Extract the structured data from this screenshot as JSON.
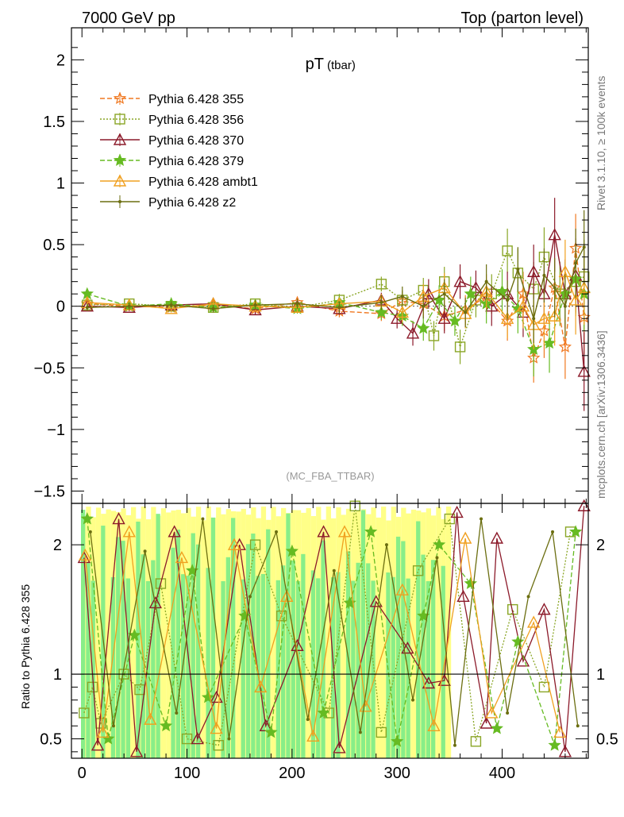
{
  "header": {
    "left": "7000 GeV pp",
    "right": "Top (parton level)"
  },
  "side_labels": {
    "rivet": "Rivet 3.1.10, ≥ 100k events",
    "mcplots": "mcplots.cern.ch [arXiv:1306.3436]"
  },
  "chart_data": [
    {
      "type": "line",
      "panel": "main",
      "title": "pT",
      "title_sub": "(tbar)",
      "analysis_tag": "(MC_FBA_TTBAR)",
      "xlabel": "",
      "ylabel": "",
      "xlim": [
        -10,
        482
      ],
      "ylim": [
        -1.6,
        2.26
      ],
      "x_ticks": [
        0,
        100,
        200,
        300,
        400
      ],
      "y_ticks": [
        -1.5,
        -1,
        -0.5,
        0,
        0.5,
        1,
        1.5,
        2
      ],
      "y_tick_labels": [
        "−1.5",
        "−1",
        "−0.5",
        "0",
        "0.5",
        "1",
        "1.5",
        "2"
      ],
      "legend_position": "top-left",
      "series": [
        {
          "name": "Pythia 6.428 355",
          "color": "#f07820",
          "dash": "6,3",
          "marker": "star",
          "marker_filled": false,
          "x": [
            5,
            45,
            85,
            125,
            165,
            205,
            245,
            285,
            305,
            325,
            345,
            365,
            385,
            405,
            420,
            430,
            440,
            450,
            460,
            470,
            478
          ],
          "y": [
            0.02,
            0.0,
            -0.01,
            0.01,
            -0.02,
            0.03,
            -0.04,
            -0.06,
            0.04,
            0.02,
            -0.08,
            -0.03,
            0.08,
            -0.12,
            0.1,
            -0.42,
            -0.2,
            0.15,
            -0.33,
            0.47,
            -0.09
          ],
          "err": [
            0.03,
            0.03,
            0.03,
            0.03,
            0.04,
            0.04,
            0.05,
            0.06,
            0.08,
            0.1,
            0.12,
            0.12,
            0.14,
            0.16,
            0.18,
            0.2,
            0.22,
            0.24,
            0.26,
            0.28,
            0.3
          ]
        },
        {
          "name": "Pythia 6.428 356",
          "color": "#8aa626",
          "dash": "2,2",
          "marker": "square",
          "marker_filled": false,
          "x": [
            5,
            45,
            85,
            125,
            165,
            205,
            245,
            285,
            305,
            325,
            335,
            345,
            360,
            375,
            390,
            405,
            415,
            430,
            440,
            455,
            470,
            478
          ],
          "y": [
            0.01,
            0.02,
            0.0,
            -0.01,
            0.02,
            -0.01,
            0.05,
            0.18,
            0.05,
            0.13,
            -0.24,
            0.2,
            -0.33,
            0.05,
            0.1,
            0.45,
            0.27,
            0.14,
            0.4,
            0.1,
            0.2,
            0.24
          ],
          "err": [
            0.03,
            0.03,
            0.03,
            0.03,
            0.04,
            0.04,
            0.05,
            0.06,
            0.08,
            0.1,
            0.12,
            0.12,
            0.14,
            0.14,
            0.16,
            0.18,
            0.2,
            0.22,
            0.24,
            0.26,
            0.28,
            0.3
          ]
        },
        {
          "name": "Pythia 6.428 370",
          "color": "#8c1a2a",
          "dash": "",
          "marker": "triangle",
          "marker_filled": false,
          "x": [
            5,
            45,
            85,
            125,
            165,
            205,
            245,
            285,
            300,
            315,
            330,
            345,
            360,
            375,
            390,
            405,
            420,
            430,
            440,
            450,
            460,
            470,
            478
          ],
          "y": [
            0.0,
            -0.01,
            0.01,
            0.02,
            -0.03,
            0.0,
            -0.02,
            0.05,
            -0.1,
            -0.22,
            0.1,
            -0.1,
            0.2,
            0.15,
            0.0,
            0.1,
            -0.05,
            0.28,
            0.1,
            0.58,
            0.1,
            0.25,
            -0.53
          ],
          "err": [
            0.03,
            0.03,
            0.03,
            0.03,
            0.04,
            0.04,
            0.05,
            0.06,
            0.08,
            0.1,
            0.12,
            0.12,
            0.14,
            0.14,
            0.16,
            0.18,
            0.2,
            0.22,
            0.24,
            0.3,
            0.28,
            0.3,
            0.32
          ]
        },
        {
          "name": "Pythia 6.428 379",
          "color": "#66bb22",
          "dash": "6,3",
          "marker": "star",
          "marker_filled": true,
          "x": [
            5,
            45,
            85,
            125,
            165,
            205,
            245,
            285,
            305,
            325,
            340,
            355,
            370,
            385,
            400,
            415,
            430,
            445,
            460,
            470,
            478
          ],
          "y": [
            0.1,
            0.0,
            0.02,
            -0.01,
            0.01,
            -0.02,
            0.03,
            -0.05,
            -0.08,
            -0.18,
            0.05,
            -0.12,
            0.1,
            0.02,
            0.12,
            -0.02,
            -0.35,
            -0.3,
            0.1,
            0.22,
            0.1
          ],
          "err": [
            0.03,
            0.03,
            0.03,
            0.03,
            0.04,
            0.04,
            0.05,
            0.06,
            0.08,
            0.1,
            0.12,
            0.12,
            0.14,
            0.16,
            0.18,
            0.2,
            0.22,
            0.24,
            0.26,
            0.28,
            0.3
          ]
        },
        {
          "name": "Pythia 6.428 ambt1",
          "color": "#f0a020",
          "dash": "",
          "marker": "triangle",
          "marker_filled": false,
          "x": [
            5,
            45,
            85,
            125,
            165,
            205,
            245,
            285,
            305,
            325,
            345,
            365,
            385,
            405,
            420,
            430,
            440,
            450,
            460,
            470,
            478
          ],
          "y": [
            0.03,
            0.01,
            -0.02,
            0.02,
            0.0,
            -0.01,
            0.02,
            0.04,
            -0.05,
            0.08,
            0.15,
            -0.06,
            0.12,
            -0.1,
            0.0,
            -0.15,
            -0.1,
            -0.08,
            0.28,
            0.05,
            0.15
          ],
          "err": [
            0.03,
            0.03,
            0.03,
            0.03,
            0.04,
            0.04,
            0.05,
            0.06,
            0.08,
            0.1,
            0.12,
            0.12,
            0.14,
            0.16,
            0.18,
            0.2,
            0.22,
            0.24,
            0.26,
            0.28,
            0.3
          ]
        },
        {
          "name": "Pythia 6.428 z2",
          "color": "#6b6e10",
          "dash": "",
          "marker": "dot",
          "marker_filled": true,
          "x": [
            5,
            45,
            85,
            125,
            165,
            205,
            245,
            285,
            305,
            325,
            345,
            365,
            385,
            405,
            415,
            430,
            440,
            450,
            460,
            470,
            478
          ],
          "y": [
            -0.01,
            0.0,
            0.01,
            -0.02,
            0.01,
            0.02,
            -0.01,
            0.03,
            0.08,
            0.0,
            0.1,
            -0.05,
            0.2,
            0.05,
            0.3,
            -0.1,
            0.25,
            0.15,
            0.0,
            0.35,
            0.48
          ],
          "err": [
            0.03,
            0.03,
            0.03,
            0.03,
            0.04,
            0.04,
            0.05,
            0.06,
            0.08,
            0.1,
            0.12,
            0.12,
            0.14,
            0.16,
            0.18,
            0.2,
            0.22,
            0.24,
            0.26,
            0.28,
            0.3
          ]
        }
      ]
    },
    {
      "type": "line",
      "panel": "ratio",
      "ylabel": "Ratio to Pythia 6.428 355",
      "xlim": [
        -10,
        482
      ],
      "ylim": [
        0.35,
        2.32
      ],
      "x_ticks": [
        0,
        100,
        200,
        300,
        400
      ],
      "x_tick_labels": [
        "0",
        "100",
        "200",
        "300",
        "400"
      ],
      "y_ticks": [
        0.5,
        1,
        2
      ],
      "y_tick_labels": [
        "0.5",
        "1",
        "2"
      ],
      "reference_line": 1,
      "band_colors": [
        "#ffff88",
        "#88ee88"
      ],
      "series": [
        {
          "name": "Pythia 6.428 356",
          "color": "#8aa626",
          "dash": "2,2",
          "marker": "square",
          "marker_filled": false,
          "x": [
            2,
            10,
            18,
            40,
            55,
            75,
            100,
            130,
            165,
            190,
            235,
            260,
            285,
            320,
            350,
            375,
            410,
            440,
            465
          ],
          "y": [
            0.7,
            0.9,
            0.62,
            1.0,
            0.88,
            1.7,
            0.5,
            0.45,
            2.0,
            1.45,
            0.7,
            2.3,
            0.55,
            1.8,
            2.2,
            0.48,
            1.5,
            0.9,
            2.1
          ]
        },
        {
          "name": "Pythia 6.428 370",
          "color": "#8c1a2a",
          "dash": "",
          "marker": "triangle",
          "marker_filled": false,
          "x": [
            2,
            15,
            35,
            52,
            70,
            88,
            110,
            128,
            150,
            175,
            205,
            230,
            245,
            280,
            310,
            330,
            345,
            357,
            363,
            385,
            395,
            420,
            440,
            460,
            478
          ],
          "y": [
            1.9,
            0.45,
            2.2,
            0.4,
            1.55,
            2.1,
            0.5,
            0.82,
            2.0,
            0.6,
            1.22,
            2.1,
            0.43,
            1.56,
            1.2,
            0.93,
            0.95,
            2.25,
            1.6,
            0.62,
            2.05,
            1.1,
            1.5,
            0.4,
            2.3
          ]
        },
        {
          "name": "Pythia 6.428 379",
          "color": "#66bb22",
          "dash": "6,3",
          "marker": "star",
          "marker_filled": true,
          "x": [
            5,
            25,
            50,
            80,
            105,
            120,
            155,
            180,
            200,
            230,
            255,
            275,
            300,
            325,
            340,
            370,
            395,
            415,
            450,
            470
          ],
          "y": [
            2.2,
            0.5,
            1.3,
            0.6,
            1.8,
            0.82,
            1.45,
            0.55,
            1.95,
            0.7,
            1.55,
            2.1,
            0.48,
            1.45,
            2.0,
            1.7,
            0.58,
            1.25,
            0.45,
            2.1
          ]
        },
        {
          "name": "Pythia 6.428 ambt1",
          "color": "#f0a020",
          "dash": "",
          "marker": "triangle",
          "marker_filled": false,
          "x": [
            3,
            20,
            45,
            65,
            95,
            128,
            145,
            170,
            195,
            220,
            250,
            270,
            305,
            335,
            365,
            390,
            430,
            455
          ],
          "y": [
            1.92,
            0.55,
            2.1,
            0.65,
            1.9,
            0.58,
            2.0,
            0.9,
            1.6,
            0.52,
            2.1,
            0.75,
            1.65,
            0.6,
            2.05,
            0.7,
            1.4,
            0.55
          ]
        },
        {
          "name": "Pythia 6.428 z2",
          "color": "#6b6e10",
          "dash": "",
          "marker": "dot",
          "marker_filled": true,
          "x": [
            8,
            30,
            60,
            90,
            115,
            140,
            160,
            185,
            215,
            240,
            265,
            290,
            315,
            338,
            355,
            380,
            405,
            425,
            448,
            472
          ],
          "y": [
            2.1,
            0.6,
            1.95,
            0.7,
            2.2,
            0.5,
            1.6,
            2.1,
            0.65,
            1.8,
            0.55,
            2.0,
            0.8,
            1.9,
            0.45,
            2.2,
            0.7,
            1.6,
            2.1,
            0.6
          ]
        }
      ]
    }
  ]
}
